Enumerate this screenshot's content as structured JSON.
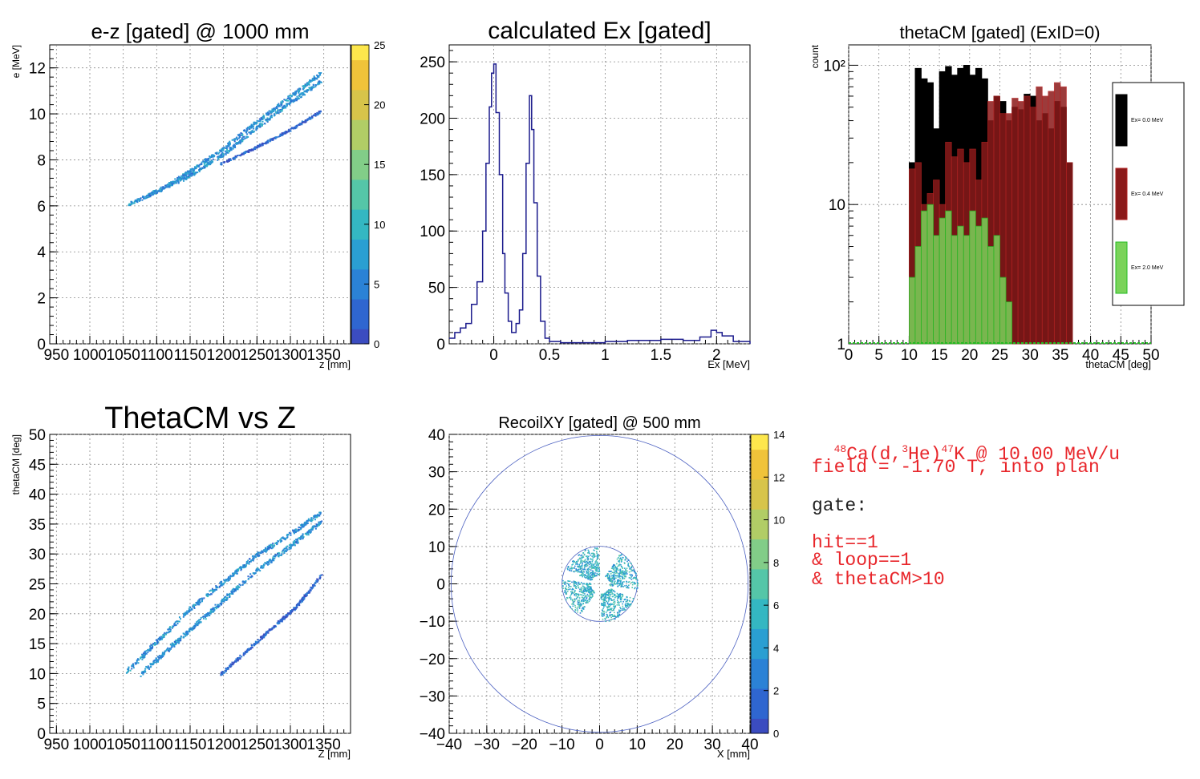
{
  "chart_data": [
    {
      "type": "heatmap",
      "title": "e-z [gated] @  1000 mm",
      "xlabel": "z [mm]",
      "ylabel": "e [MeV]",
      "xlim": [
        940,
        1390
      ],
      "ylim": [
        0,
        13
      ],
      "xticks": [
        950,
        1000,
        1050,
        1100,
        1150,
        1200,
        1250,
        1300,
        1350
      ],
      "xtick_labels": [
        "950",
        "1000",
        "1050",
        "1100",
        "1150",
        "1200",
        "1250",
        "1300",
        "1350"
      ],
      "yticks": [
        0,
        2,
        4,
        6,
        8,
        10,
        12
      ],
      "colorbar": {
        "range": [
          0,
          25
        ],
        "ticks": [
          0,
          5,
          10,
          15,
          20,
          25
        ]
      },
      "series": [
        {
          "points": [
            [
              1055,
              6.05
            ],
            [
              1110,
              6.8
            ],
            [
              1150,
              7.55
            ],
            [
              1200,
              8.55
            ],
            [
              1250,
              9.7
            ],
            [
              1300,
              10.8
            ],
            [
              1345,
              11.8
            ]
          ]
        },
        {
          "points": [
            [
              1090,
              6.55
            ],
            [
              1150,
              7.35
            ],
            [
              1200,
              8.3
            ],
            [
              1250,
              9.45
            ],
            [
              1300,
              10.55
            ],
            [
              1345,
              11.45
            ]
          ]
        },
        {
          "points": [
            [
              1195,
              7.85
            ],
            [
              1250,
              8.6
            ],
            [
              1300,
              9.35
            ],
            [
              1345,
              10.15
            ]
          ]
        }
      ]
    },
    {
      "type": "line",
      "title": "calculated Ex [gated]",
      "xlabel": "Ex [MeV]",
      "ylabel": "",
      "xlim": [
        -0.4,
        2.3
      ],
      "ylim": [
        0,
        265
      ],
      "xticks": [
        0,
        0.5,
        1,
        1.5,
        2
      ],
      "xtick_labels": [
        "0",
        "0.5",
        "1",
        "1.5",
        "2"
      ],
      "yticks": [
        0,
        50,
        100,
        150,
        200,
        250
      ],
      "x": [
        -0.4,
        -0.35,
        -0.3,
        -0.25,
        -0.2,
        -0.15,
        -0.1,
        -0.07,
        -0.04,
        -0.02,
        0.0,
        0.02,
        0.05,
        0.08,
        0.1,
        0.13,
        0.16,
        0.2,
        0.23,
        0.26,
        0.29,
        0.32,
        0.34,
        0.36,
        0.39,
        0.42,
        0.46,
        0.5,
        0.6,
        0.8,
        1.0,
        1.2,
        1.5,
        1.7,
        1.85,
        1.95,
        2.0,
        2.05,
        2.15,
        2.3
      ],
      "y": [
        5,
        10,
        14,
        18,
        35,
        55,
        100,
        160,
        210,
        240,
        248,
        205,
        150,
        80,
        45,
        20,
        10,
        18,
        30,
        80,
        160,
        220,
        190,
        125,
        60,
        20,
        5,
        2,
        1,
        1,
        2,
        3,
        4,
        3,
        6,
        12,
        10,
        7,
        2,
        0
      ]
    },
    {
      "type": "bar",
      "title": "thetaCM [gated] (ExID=0)",
      "xlabel": "thetaCM [deg]",
      "ylabel": "count",
      "log_y": true,
      "xlim": [
        0,
        50
      ],
      "ylim": [
        1,
        140
      ],
      "xticks": [
        0,
        5,
        10,
        15,
        20,
        25,
        30,
        35,
        40,
        45,
        50
      ],
      "ytick_labels": [
        "1",
        "10",
        "10²"
      ],
      "legend": {
        "position": "right",
        "entries": [
          "Ex=  0.0 MeV",
          "Ex=  0.4 MeV",
          "Ex=  2.0 MeV"
        ]
      },
      "series": [
        {
          "name": "Ex=  0.0 MeV",
          "color": "#000000",
          "x": [
            10.5,
            11.5,
            12.5,
            13.5,
            14.5,
            15.5,
            16.5,
            17.5,
            18.5,
            19.5,
            20.5,
            21.5,
            22.5,
            23.5,
            24.5,
            25.5,
            26.5,
            27.5,
            28.5,
            29.5,
            30.5,
            31.5,
            32.5,
            33.5,
            34.5,
            35.5,
            36.5
          ],
          "values": [
            20,
            95,
            80,
            75,
            35,
            90,
            98,
            85,
            95,
            100,
            85,
            95,
            80,
            40,
            60,
            55,
            40,
            50,
            48,
            62,
            60,
            40,
            45,
            35,
            55,
            50,
            20
          ]
        },
        {
          "name": "Ex=  0.4 MeV",
          "color": "#b22222",
          "x": [
            10.5,
            11.5,
            12.5,
            13.5,
            14.5,
            15.5,
            16.5,
            17.5,
            18.5,
            19.5,
            20.5,
            21.5,
            22.5,
            23.5,
            24.5,
            25.5,
            26.5,
            27.5,
            28.5,
            29.5,
            30.5,
            31.5,
            32.5,
            33.5,
            34.5,
            35.5,
            36.5
          ],
          "values": [
            18,
            20,
            10,
            12,
            15,
            10,
            28,
            22,
            25,
            20,
            25,
            15,
            28,
            55,
            60,
            45,
            45,
            58,
            55,
            60,
            50,
            70,
            60,
            65,
            75,
            70,
            20
          ]
        },
        {
          "name": "Ex=  2.0 MeV",
          "color": "#22bb22",
          "x": [
            10.5,
            11.5,
            12.5,
            13.5,
            14.5,
            15.5,
            16.5,
            17.5,
            18.5,
            19.5,
            20.5,
            21.5,
            22.5,
            23.5,
            24.5,
            25.5,
            26.5
          ],
          "values": [
            3,
            5,
            9,
            10,
            6,
            8,
            9,
            6,
            7,
            6,
            9,
            7,
            8,
            5,
            6,
            3,
            2
          ]
        }
      ]
    },
    {
      "type": "heatmap",
      "title": "ThetaCM vs Z",
      "xlabel": "Z [mm]",
      "ylabel": "thetaCM [deg]",
      "xlim": [
        940,
        1390
      ],
      "ylim": [
        0,
        50
      ],
      "xticks": [
        950,
        1000,
        1050,
        1100,
        1150,
        1200,
        1250,
        1300,
        1350
      ],
      "xtick_labels": [
        "950",
        "1000",
        "1050",
        "1100",
        "1150",
        "1200",
        "1250",
        "1300",
        "1350"
      ],
      "yticks": [
        0,
        5,
        10,
        15,
        20,
        25,
        30,
        35,
        40,
        45,
        50
      ],
      "series": [
        {
          "points": [
            [
              1055,
              10.5
            ],
            [
              1100,
              15.5
            ],
            [
              1150,
              21
            ],
            [
              1200,
              25.5
            ],
            [
              1250,
              30
            ],
            [
              1300,
              33.5
            ],
            [
              1345,
              37
            ]
          ]
        },
        {
          "points": [
            [
              1075,
              10
            ],
            [
              1120,
              14.5
            ],
            [
              1160,
              18.5
            ],
            [
              1200,
              22.5
            ],
            [
              1250,
              27.5
            ],
            [
              1300,
              31.5
            ],
            [
              1345,
              35.5
            ]
          ]
        },
        {
          "points": [
            [
              1195,
              10
            ],
            [
              1240,
              14.5
            ],
            [
              1280,
              18.5
            ],
            [
              1310,
              21.5
            ],
            [
              1345,
              26.5
            ]
          ]
        }
      ]
    },
    {
      "type": "heatmap",
      "title": "RecoilXY [gated] @  500 mm",
      "xlabel": "X [mm]",
      "ylabel": "",
      "xlim": [
        -40,
        40
      ],
      "ylim": [
        -40,
        40
      ],
      "xticks": [
        -40,
        -30,
        -20,
        -10,
        0,
        10,
        20,
        30,
        40
      ],
      "yticks": [
        -40,
        -30,
        -20,
        -10,
        0,
        10,
        20,
        30,
        40
      ],
      "colorbar": {
        "range": [
          0,
          14
        ],
        "ticks": [
          0,
          2,
          4,
          6,
          8,
          10,
          12,
          14
        ]
      },
      "outer_circle_radius": 39.5,
      "inner_circle_radius": 10,
      "sectors": [
        {
          "center_angle_deg": 125,
          "half_width_deg": 32
        },
        {
          "center_angle_deg": 25,
          "half_width_deg": 32
        },
        {
          "center_angle_deg": 205,
          "half_width_deg": 32
        },
        {
          "center_angle_deg": 305,
          "half_width_deg": 32
        }
      ]
    }
  ],
  "info": {
    "reaction_prefix_sup": "48",
    "reaction_part1": "Ca(d,",
    "reaction_sup2": "3",
    "reaction_part2": "He)",
    "reaction_sup3": "47",
    "reaction_part3": "K @ 10.00 MeV/u",
    "field": "field = -1.70 T, into plan",
    "gate_label": "gate:",
    "gate_lines": [
      "hit==1",
      "& loop==1",
      "& thetaCM>10"
    ]
  }
}
